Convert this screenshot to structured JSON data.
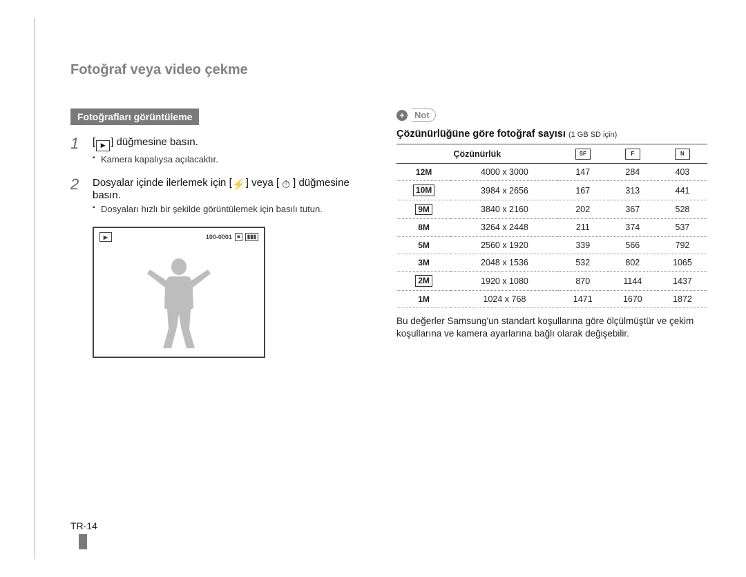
{
  "page": {
    "title": "Fotoğraf veya video çekme",
    "page_number": "TR-14"
  },
  "left": {
    "section_heading": "Fotoğrafları görüntüleme",
    "steps": [
      {
        "num": "1",
        "main_pre": "[",
        "main_post": "] düğmesine basın.",
        "sub": [
          "Kamera kapalıysa açılacaktır."
        ]
      },
      {
        "num": "2",
        "main_pre": "Dosyalar içinde ilerlemek için [",
        "main_mid": "] veya [",
        "main_post": "] düğmesine basın.",
        "sub": [
          "Dosyaları hızlı bir şekilde görüntülemek için basılı tutun."
        ]
      }
    ],
    "preview_counter": "100-0001"
  },
  "right": {
    "note_label": "Not",
    "subheading": "Çözünürlüğüne göre fotoğraf sayısı",
    "subheading_note": "(1 GB SD için)",
    "table": {
      "header_res": "Çözünürlük",
      "quality_icons": [
        "SF",
        "F",
        "N"
      ],
      "rows": [
        {
          "icon": "12M",
          "icon_box": false,
          "dim": "4000 x 3000",
          "q": [
            "147",
            "284",
            "403"
          ]
        },
        {
          "icon": "10M",
          "icon_box": true,
          "dim": "3984 x 2656",
          "q": [
            "167",
            "313",
            "441"
          ]
        },
        {
          "icon": "9M",
          "icon_box": true,
          "dim": "3840 x 2160",
          "q": [
            "202",
            "367",
            "528"
          ]
        },
        {
          "icon": "8M",
          "icon_box": false,
          "dim": "3264 x 2448",
          "q": [
            "211",
            "374",
            "537"
          ]
        },
        {
          "icon": "5M",
          "icon_box": false,
          "dim": "2560 x 1920",
          "q": [
            "339",
            "566",
            "792"
          ]
        },
        {
          "icon": "3M",
          "icon_box": false,
          "dim": "2048 x 1536",
          "q": [
            "532",
            "802",
            "1065"
          ]
        },
        {
          "icon": "2M",
          "icon_box": true,
          "dim": "1920 x 1080",
          "q": [
            "870",
            "1144",
            "1437"
          ]
        },
        {
          "icon": "1M",
          "icon_box": false,
          "dim": "1024 x 768",
          "q": [
            "1471",
            "1670",
            "1872"
          ]
        }
      ]
    },
    "footnote": "Bu değerler Samsung'un standart koşullarına göre ölçülmüştür ve çekim koşullarına ve kamera ayarlarına bağlı olarak değişebilir."
  },
  "colors": {
    "section_bar_bg": "#7a7a7a",
    "title_color": "#808080"
  }
}
